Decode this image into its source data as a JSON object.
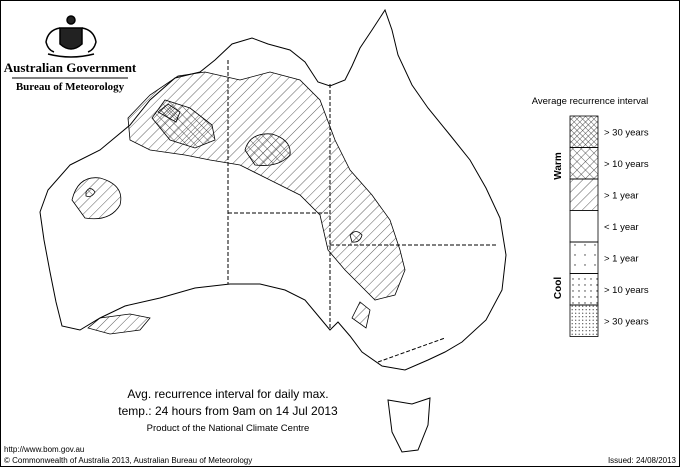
{
  "header": {
    "government": "Australian Government",
    "agency": "Bureau of Meteorology"
  },
  "legend": {
    "title": "Average recurrence interval",
    "warm": {
      "label": "Warm",
      "items": [
        "> 30 years",
        "> 10 years",
        "> 1 year"
      ]
    },
    "neutral": "< 1 year",
    "cool": {
      "label": "Cool",
      "items": [
        "> 1 year",
        "> 10 years",
        "> 30 years"
      ]
    }
  },
  "caption": {
    "lines": [
      "Avg. recurrence interval for daily max.",
      "temp.: 24 hours from 9am on 14 Jul 2013"
    ],
    "credit": "Product of the National Climate Centre"
  },
  "footer": {
    "url": "http://www.bom.gov.au",
    "copyright": "© Commonwealth of Australia 2013, Australian Bureau of Meteorology",
    "issued": "Issued: 24/08/2013"
  }
}
